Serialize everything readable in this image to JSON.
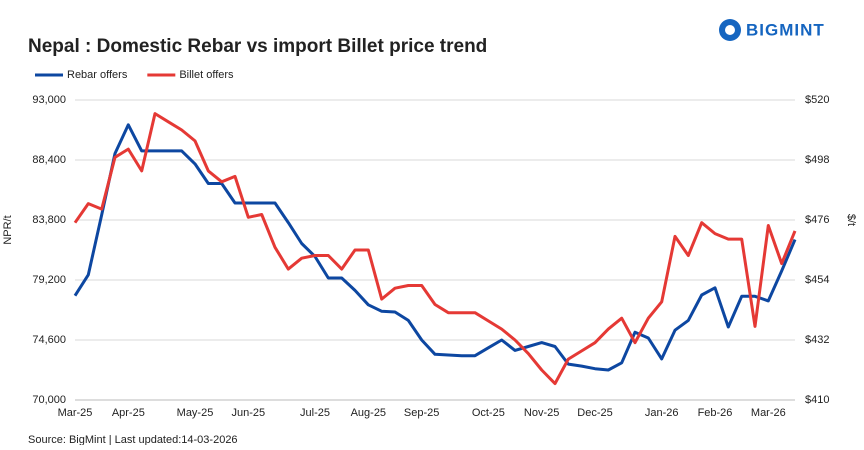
{
  "logo": "BIGMINT",
  "chart_data": {
    "type": "line",
    "title": "Nepal : Domestic Rebar vs import Billet price trend",
    "source": "Source: BigMint | Last updated:14-03-2026",
    "y_label": "NPR/t",
    "y2_label": "$/t",
    "categories": [
      "Mar-25",
      null,
      null,
      null,
      "Apr-25",
      null,
      null,
      null,
      null,
      "May-25",
      null,
      null,
      null,
      "Jun-25",
      null,
      null,
      null,
      null,
      "Jul-25",
      null,
      null,
      null,
      "Aug-25",
      null,
      null,
      null,
      "Sep-25",
      null,
      null,
      null,
      null,
      "Oct-25",
      null,
      null,
      null,
      "Nov-25",
      null,
      null,
      null,
      "Dec-25",
      null,
      null,
      null,
      null,
      "Jan-26",
      null,
      null,
      null,
      "Feb-26",
      null,
      null,
      null,
      "Mar-26",
      null,
      null
    ],
    "series": [
      {
        "name": "Rebar offers",
        "color": "#0d47a1",
        "values": [
          78000,
          79600,
          84200,
          88900,
          91100,
          89100,
          89100,
          89100,
          89100,
          88100,
          86600,
          86600,
          85100,
          85100,
          85100,
          85100,
          83600,
          82000,
          81000,
          79350,
          79350,
          78400,
          77300,
          76800,
          76750,
          76100,
          74600,
          73500,
          73450,
          73400,
          73400,
          74000,
          74600,
          73800,
          74100,
          74400,
          74100,
          72750,
          72600,
          72400,
          72300,
          72850,
          75200,
          74750,
          73150,
          75350,
          76100,
          78050,
          78600,
          75600,
          77950,
          77950,
          77600,
          79900,
          82300
        ]
      },
      {
        "name": "Billet offers",
        "color": "#e53935",
        "axis": "y2",
        "values": [
          475,
          482,
          480,
          499,
          502,
          494,
          515,
          512,
          509,
          505,
          494,
          490,
          492,
          477,
          478,
          466,
          458,
          462,
          463,
          463,
          458,
          465,
          465,
          447,
          451,
          452,
          452,
          445,
          442,
          442,
          442,
          439,
          436,
          432,
          427,
          421,
          416,
          425,
          428,
          431,
          436,
          440,
          431,
          440,
          446,
          470,
          463,
          475,
          471,
          469,
          469,
          437,
          474,
          460,
          472
        ]
      }
    ],
    "ylim": [
      70000,
      93000
    ],
    "yticks": [
      {
        "value": 70000,
        "label": "70,000"
      },
      {
        "value": 74600,
        "label": "74,600"
      },
      {
        "value": 79200,
        "label": "79,200"
      },
      {
        "value": 83800,
        "label": "83,800"
      },
      {
        "value": 88400,
        "label": "88,400"
      },
      {
        "value": 93000,
        "label": "93,000"
      }
    ],
    "y2lim": [
      410,
      520
    ],
    "y2ticks": [
      {
        "value": 410,
        "label": "$410"
      },
      {
        "value": 432,
        "label": "$432"
      },
      {
        "value": 454,
        "label": "$454"
      },
      {
        "value": 476,
        "label": "$476"
      },
      {
        "value": 498,
        "label": "$498"
      },
      {
        "value": 520,
        "label": "$520"
      }
    ],
    "grid": true,
    "legend": "top-left"
  }
}
